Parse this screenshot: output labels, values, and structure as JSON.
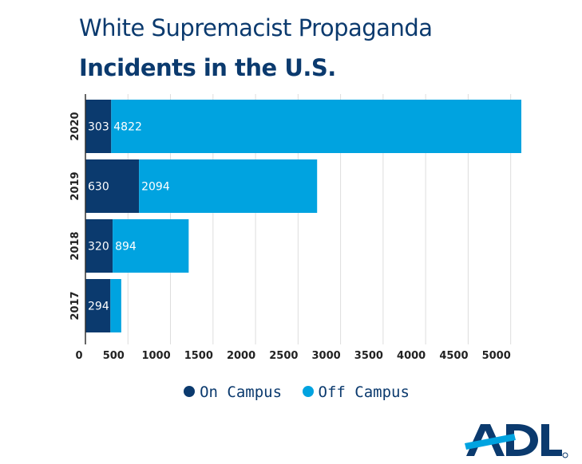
{
  "chart_data": {
    "type": "bar",
    "orientation": "horizontal",
    "stacked": true,
    "title": "White Supremacist Propaganda",
    "subtitle": "Incidents in the U.S.",
    "categories": [
      "2020",
      "2019",
      "2018",
      "2017"
    ],
    "series": [
      {
        "name": "On Campus",
        "color": "#0b3a6e",
        "values": [
          303,
          630,
          320,
          294
        ],
        "labels": [
          "303",
          "630",
          "320",
          "294"
        ]
      },
      {
        "name": "Off Campus",
        "color": "#00a3e0",
        "values": [
          4822,
          2094,
          894,
          127
        ],
        "labels": [
          "4822",
          "2094",
          "894",
          ""
        ]
      }
    ],
    "xticks": [
      "0",
      "500",
      "1000",
      "1500",
      "2000",
      "2500",
      "3000",
      "3500",
      "4000",
      "4500",
      "5000"
    ],
    "xlim": [
      0,
      5200
    ],
    "grid": true,
    "legend": "bottom"
  },
  "logo": {
    "text": "ADL"
  }
}
